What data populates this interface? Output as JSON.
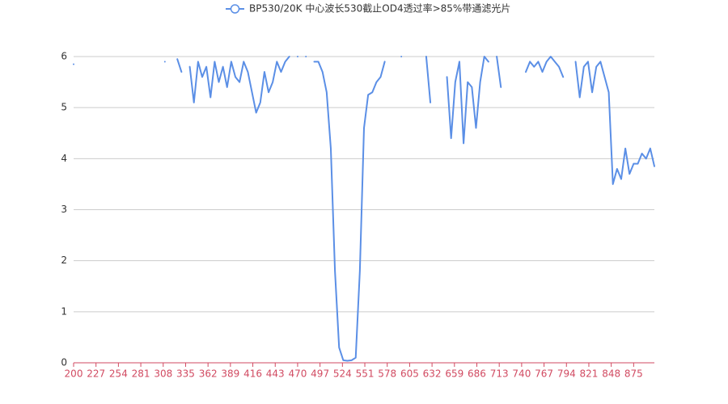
{
  "chart_data": {
    "type": "line",
    "legend": "BP530/20K 中心波长530截止OD4透过率>85%带通滤光片",
    "x": [
      200,
      205,
      210,
      215,
      220,
      225,
      230,
      235,
      240,
      245,
      250,
      255,
      260,
      265,
      270,
      275,
      280,
      285,
      290,
      295,
      300,
      305,
      310,
      315,
      320,
      325,
      330,
      335,
      340,
      345,
      350,
      355,
      360,
      365,
      370,
      375,
      380,
      385,
      390,
      395,
      400,
      405,
      410,
      415,
      420,
      425,
      430,
      435,
      440,
      445,
      450,
      455,
      460,
      465,
      470,
      475,
      480,
      485,
      490,
      495,
      500,
      505,
      510,
      515,
      520,
      525,
      530,
      535,
      540,
      545,
      550,
      555,
      560,
      565,
      570,
      575,
      580,
      585,
      590,
      595,
      600,
      605,
      610,
      615,
      620,
      625,
      630,
      635,
      640,
      645,
      650,
      655,
      660,
      665,
      670,
      675,
      680,
      685,
      690,
      695,
      700,
      705,
      710,
      715,
      720,
      725,
      730,
      735,
      740,
      745,
      750,
      755,
      760,
      765,
      770,
      775,
      780,
      785,
      790,
      795,
      800,
      805,
      810,
      815,
      820,
      825,
      830,
      835,
      840,
      845,
      850,
      855,
      860,
      865,
      870,
      875,
      880,
      885,
      890,
      895,
      900
    ],
    "series": [
      {
        "name": "BP530/20K 中心波长530截止OD4透过率>85%带通滤光片",
        "color": "#5b8fe6",
        "values": [
          5.85,
          null,
          null,
          null,
          null,
          null,
          null,
          null,
          null,
          null,
          null,
          null,
          null,
          null,
          null,
          null,
          null,
          null,
          null,
          null,
          null,
          null,
          5.9,
          null,
          null,
          5.95,
          5.7,
          null,
          5.8,
          5.1,
          5.9,
          5.6,
          5.8,
          5.2,
          5.9,
          5.5,
          5.8,
          5.4,
          5.9,
          5.6,
          5.5,
          5.9,
          5.7,
          5.3,
          4.9,
          5.1,
          5.7,
          5.3,
          5.5,
          5.9,
          5.7,
          5.9,
          6,
          null,
          6,
          null,
          6,
          null,
          5.9,
          5.9,
          5.7,
          5.3,
          4.2,
          1.8,
          0.3,
          0.05,
          0.04,
          0.05,
          0.1,
          1.8,
          4.6,
          5.25,
          5.3,
          5.5,
          5.6,
          5.9,
          null,
          null,
          null,
          6,
          null,
          null,
          null,
          null,
          null,
          6,
          5.1,
          null,
          null,
          null,
          5.6,
          4.4,
          5.5,
          5.9,
          4.3,
          5.5,
          5.4,
          4.6,
          5.5,
          6,
          5.9,
          null,
          6,
          5.4,
          null,
          null,
          null,
          null,
          null,
          5.7,
          5.9,
          5.8,
          5.9,
          5.7,
          5.9,
          6,
          5.9,
          5.8,
          5.6,
          null,
          null,
          5.9,
          5.2,
          5.8,
          5.9,
          5.3,
          5.8,
          5.9,
          5.6,
          5.3,
          3.5,
          3.8,
          3.6,
          4.2,
          3.7,
          3.9,
          3.9,
          4.1,
          4.0,
          4.2,
          3.85
        ]
      }
    ],
    "xlim": [
      200,
      900
    ],
    "xticks": [
      200,
      227,
      254,
      281,
      308,
      335,
      362,
      389,
      416,
      443,
      470,
      497,
      524,
      551,
      578,
      605,
      632,
      659,
      686,
      713,
      740,
      767,
      794,
      821,
      848,
      875
    ],
    "ylim": [
      0,
      6
    ],
    "yticks": [
      0,
      1,
      2,
      3,
      4,
      5,
      6
    ],
    "grid": true,
    "axis_color": "#d14a61"
  }
}
